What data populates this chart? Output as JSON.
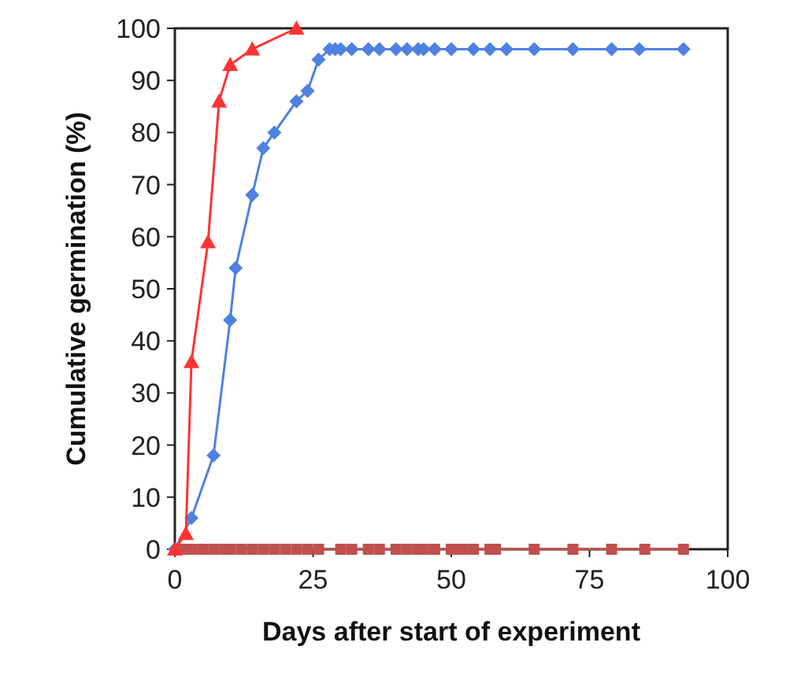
{
  "chart_data": {
    "type": "line",
    "xlabel": "Days after start of experiment",
    "ylabel": "Cumulative germination (%)",
    "xlim": [
      0,
      100
    ],
    "ylim": [
      0,
      100
    ],
    "xticks": [
      0,
      25,
      50,
      75,
      100
    ],
    "yticks": [
      0,
      10,
      20,
      30,
      40,
      50,
      60,
      70,
      80,
      90,
      100
    ],
    "grid": false,
    "series": [
      {
        "color": "#4f81e0",
        "marker": "diamond",
        "x": [
          0,
          3,
          7,
          10,
          11,
          14,
          16,
          18,
          22,
          24,
          26,
          28,
          29,
          30,
          32,
          35,
          37,
          40,
          42,
          44,
          45,
          47,
          50,
          54,
          57,
          60,
          65,
          72,
          79,
          84,
          92
        ],
        "values": [
          0,
          6,
          18,
          44,
          54,
          68,
          77,
          80,
          86,
          88,
          94,
          96,
          96,
          96,
          96,
          96,
          96,
          96,
          96,
          96,
          96,
          96,
          96,
          96,
          96,
          96,
          96,
          96,
          96,
          96,
          96
        ]
      },
      {
        "color": "#c0504d",
        "marker": "square",
        "x": [
          1,
          3,
          5,
          7,
          9,
          10,
          12,
          14,
          16,
          18,
          20,
          22,
          24,
          26,
          30,
          32,
          35,
          37,
          40,
          42,
          44,
          45,
          47,
          50,
          52,
          54,
          57,
          58,
          65,
          72,
          79,
          85,
          92
        ],
        "values": [
          0,
          0,
          0,
          0,
          0,
          0,
          0,
          0,
          0,
          0,
          0,
          0,
          0,
          0,
          0,
          0,
          0,
          0,
          0,
          0,
          0,
          0,
          0,
          0,
          0,
          0,
          0,
          0,
          0,
          0,
          0,
          0,
          0
        ]
      },
      {
        "color": "#ff3333",
        "marker": "triangle",
        "x": [
          0,
          2,
          3,
          6,
          8,
          10,
          14,
          22
        ],
        "values": [
          0,
          3,
          36,
          59,
          86,
          93,
          96,
          100
        ]
      }
    ]
  }
}
